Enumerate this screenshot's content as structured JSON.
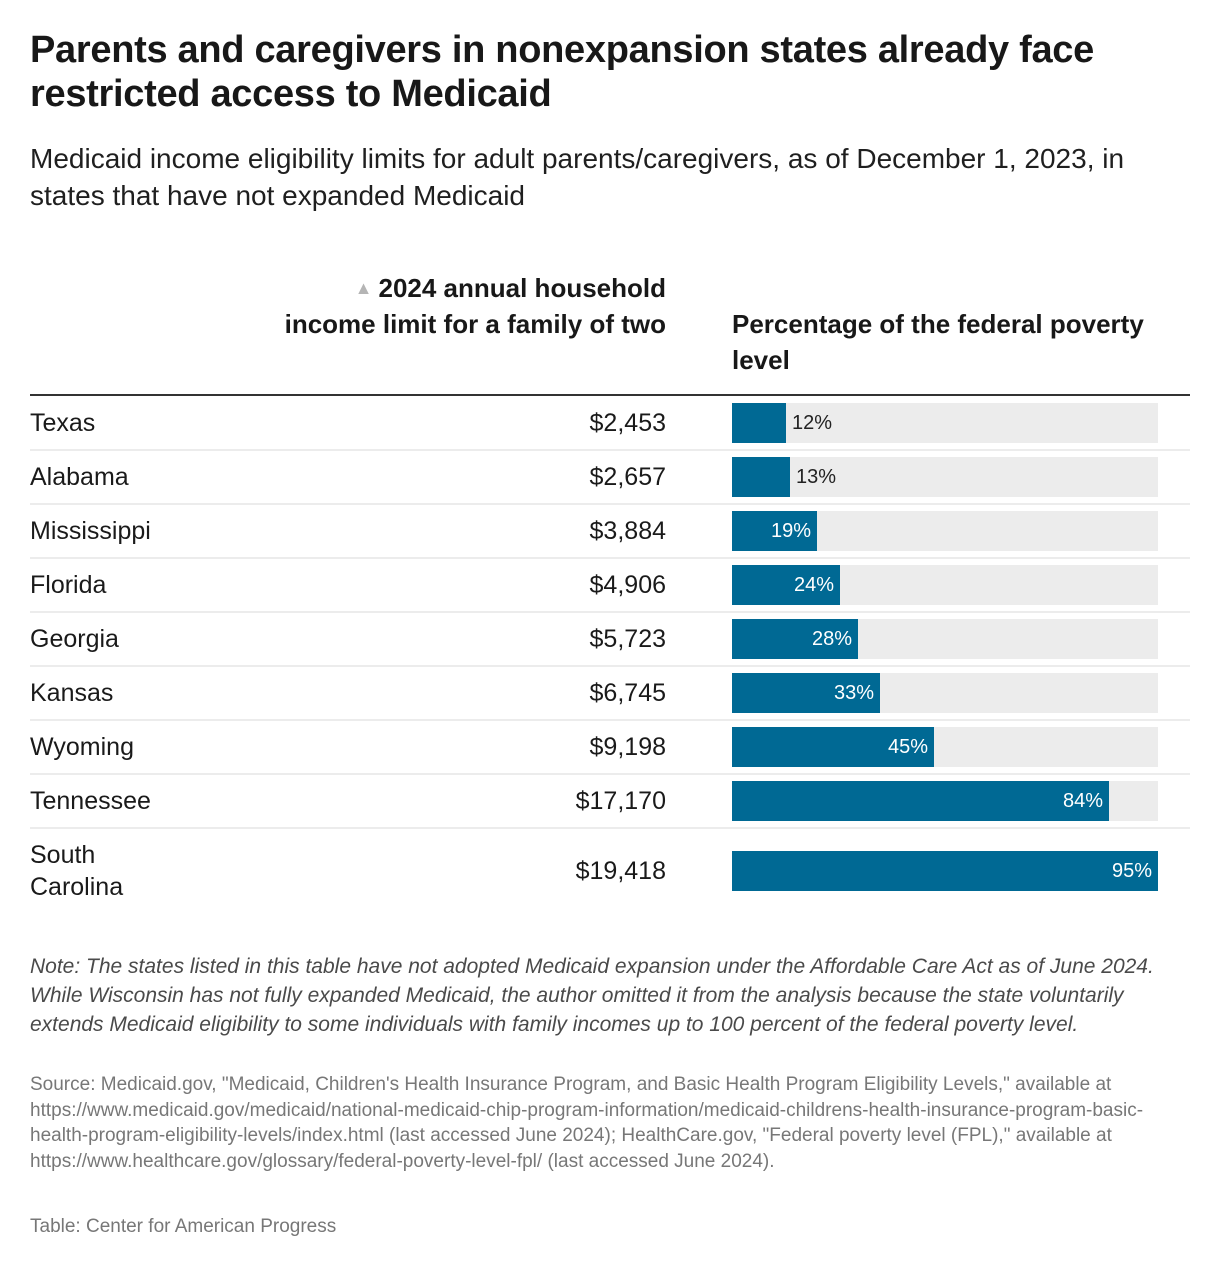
{
  "header": {
    "title": "Parents and caregivers in nonexpansion states already face restricted access to Medicaid",
    "subtitle": "Medicaid income eligibility limits for adult parents/caregivers, as of December 1, 2023, in states that have not expanded Medicaid"
  },
  "table": {
    "columns": {
      "state": "",
      "income": "2024 annual household income limit for a family of two",
      "income_sort_icon": "▲",
      "fpl": "Percentage of the federal poverty level"
    },
    "bar_color": "#006994",
    "track_color": "#ececec"
  },
  "chart_data": {
    "type": "bar",
    "orientation": "horizontal",
    "title": "Percentage of the federal poverty level",
    "categories": [
      "Texas",
      "Alabama",
      "Mississippi",
      "Florida",
      "Georgia",
      "Kansas",
      "Wyoming",
      "Tennessee",
      "South Carolina"
    ],
    "values": [
      12,
      13,
      19,
      24,
      28,
      33,
      45,
      84,
      95
    ],
    "value_labels": [
      "12%",
      "13%",
      "19%",
      "24%",
      "28%",
      "33%",
      "45%",
      "84%",
      "95%"
    ],
    "income_limits": [
      "$2,453",
      "$2,657",
      "$3,884",
      "$4,906",
      "$5,723",
      "$6,745",
      "$9,198",
      "$17,170",
      "$19,418"
    ],
    "xlim": [
      0,
      95
    ],
    "unit": "%",
    "sorted_by": "2024 annual household income limit for a family of two (ascending)"
  },
  "footer": {
    "note": "Note: The states listed in this table have not adopted Medicaid expansion under the Affordable Care Act as of June 2024. While Wisconsin has not fully expanded Medicaid, the author omitted it from the analysis because the state voluntarily extends Medicaid eligibility to some individuals with family incomes up to 100 percent of the federal poverty level.",
    "source": "Source: Medicaid.gov, \"Medicaid, Children's Health Insurance Program, and Basic Health Program Eligibility Levels,\" available at https://www.medicaid.gov/medicaid/national-medicaid-chip-program-information/medicaid-childrens-health-insurance-program-basic-health-program-eligibility-levels/index.html (last accessed June 2024); HealthCare.gov, \"Federal poverty level (FPL),\" available at https://www.healthcare.gov/glossary/federal-poverty-level-fpl/ (last accessed June 2024).",
    "credit": "Table: Center for American Progress"
  }
}
